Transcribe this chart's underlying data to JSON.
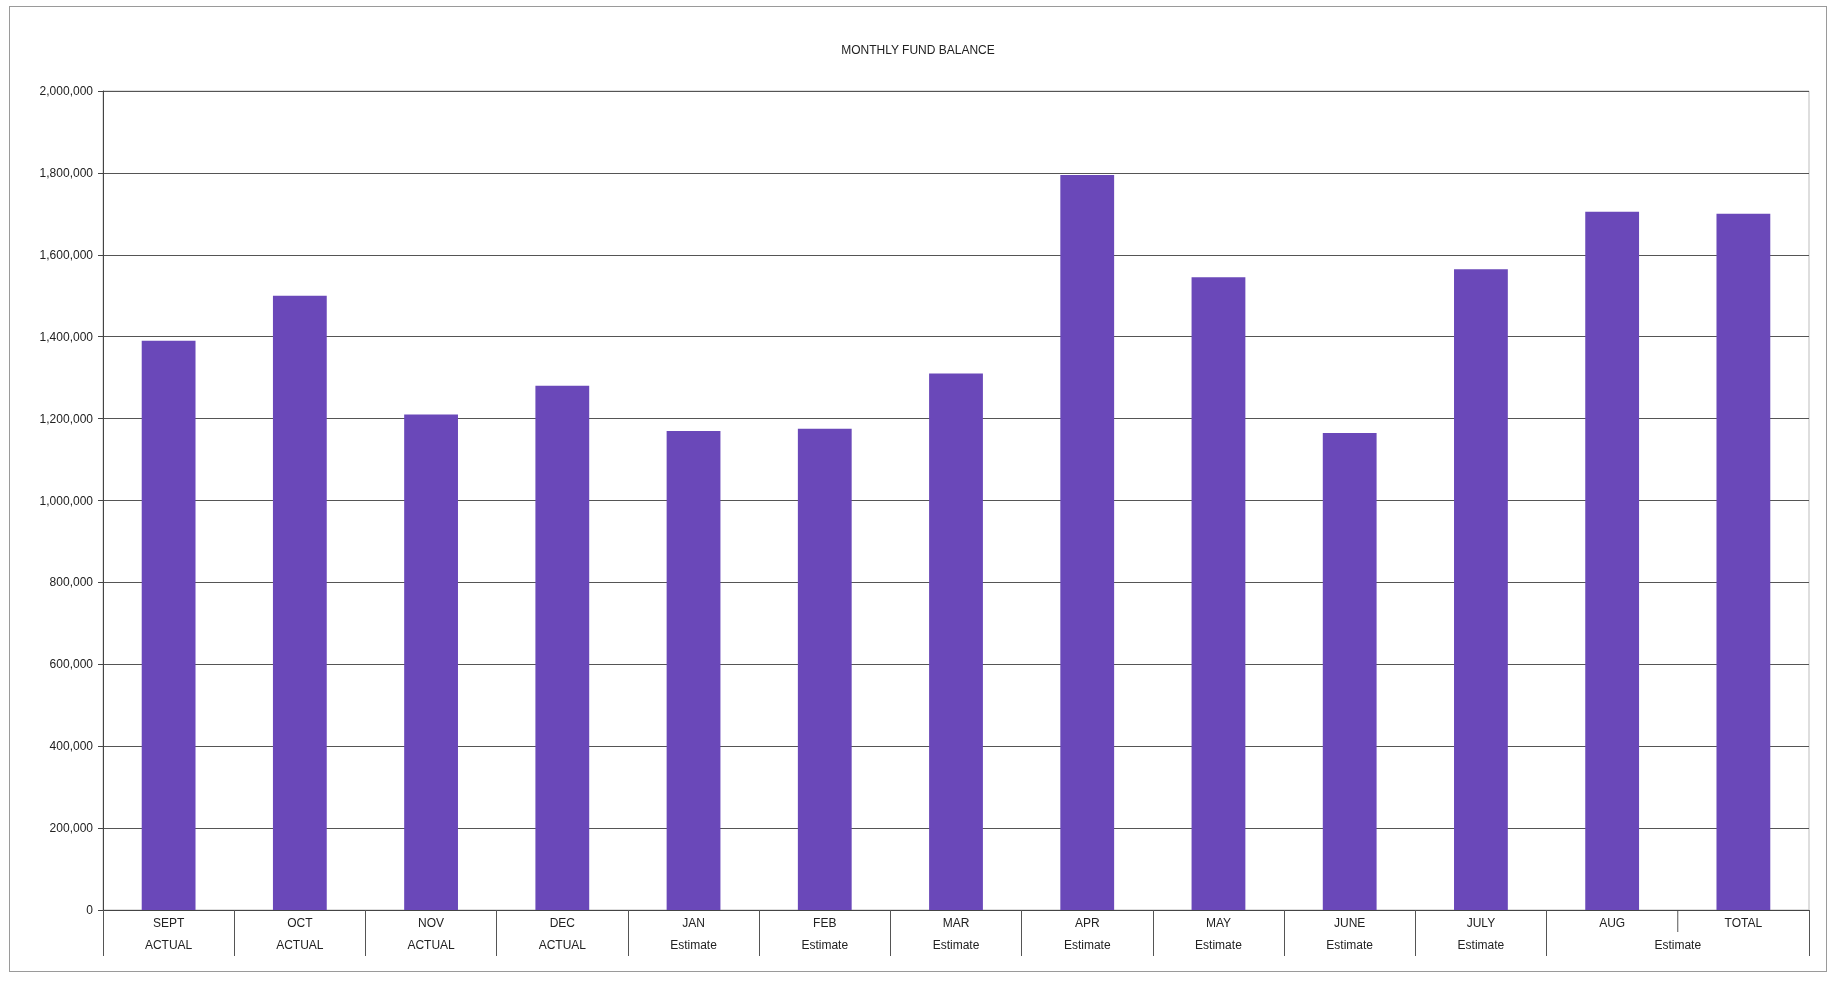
{
  "chart_data": {
    "type": "bar",
    "title": "MONTHLY FUND BALANCE",
    "categories": [
      "SEPT\nACTUAL",
      "OCT\nACTUAL",
      "NOV\nACTUAL",
      "DEC\nACTUAL",
      "JAN\nEstimate",
      "FEB\nEstimate",
      "MAR\nEstimate",
      "APR\nEstimate",
      "MAY\nEstimate",
      "JUNE\nEstimate",
      "JULY\nEstimate",
      "AUG",
      "TOTAL"
    ],
    "values": [
      1390000,
      1500000,
      1210000,
      1280000,
      1170000,
      1175000,
      1310000,
      1795000,
      1545000,
      1165000,
      1565000,
      1705000,
      1700000
    ],
    "color": "#6a48b9",
    "ylim": [
      0,
      2000000
    ],
    "yticks": [
      {
        "value": 0,
        "label": "0"
      },
      {
        "value": 200000,
        "label": "200,000"
      },
      {
        "value": 400000,
        "label": "400,000"
      },
      {
        "value": 600000,
        "label": "600,000"
      },
      {
        "value": 800000,
        "label": "800,000"
      },
      {
        "value": 1000000,
        "label": "1,000,000"
      },
      {
        "value": 1200000,
        "label": "1,200,000"
      },
      {
        "value": 1400000,
        "label": "1,400,000"
      },
      {
        "value": 1600000,
        "label": "1,600,000"
      },
      {
        "value": 1800000,
        "label": "1,800,000"
      },
      {
        "value": 2000000,
        "label": "2,000,000"
      }
    ],
    "grid": "y",
    "annotations": [
      "Estimate"
    ]
  }
}
